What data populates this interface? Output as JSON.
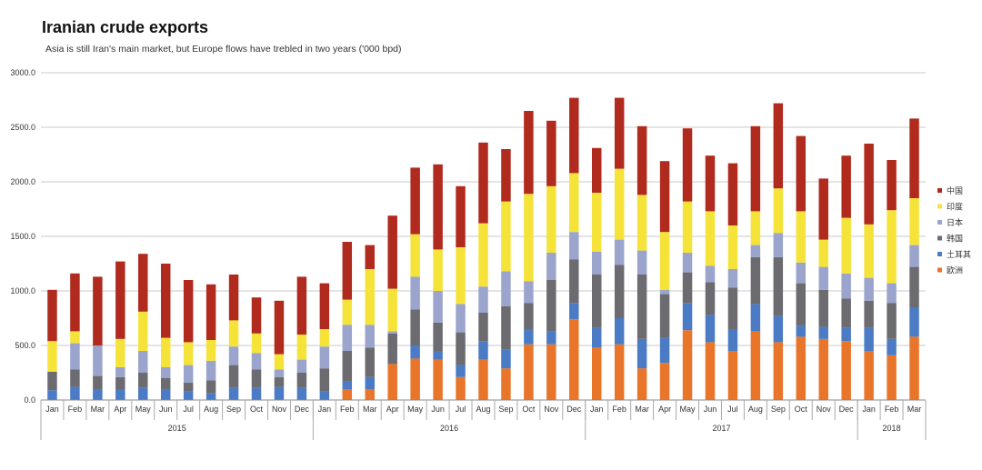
{
  "title": "Iranian crude exports",
  "subtitle": "Asia is still Iran's main market, but Europe flows have trebled in two years ('000 bpd)",
  "chart_data": {
    "type": "bar",
    "stacked": true,
    "title": "Iranian crude exports",
    "subtitle": "Asia is still Iran's main market, but Europe flows have trebled in two years ('000 bpd)",
    "xlabel": "",
    "ylabel": "",
    "ylim": [
      0,
      3000
    ],
    "yticks": [
      "0.0",
      "500.0",
      "1000.0",
      "1500.0",
      "2000.0",
      "2500.0",
      "3000.0"
    ],
    "grid": true,
    "legend_position": "right",
    "categories": [
      "Jan",
      "Feb",
      "Mar",
      "Apr",
      "May",
      "Jun",
      "Jul",
      "Aug",
      "Sep",
      "Oct",
      "Nov",
      "Dec",
      "Jan",
      "Feb",
      "Mar",
      "Apr",
      "May",
      "Jun",
      "Jul",
      "Aug",
      "Sep",
      "Oct",
      "Nov",
      "Dec",
      "Jan",
      "Feb",
      "Mar",
      "Apr",
      "May",
      "Jun",
      "Jul",
      "Aug",
      "Sep",
      "Oct",
      "Nov",
      "Dec",
      "Jan",
      "Feb",
      "Mar"
    ],
    "years": [
      {
        "label": "2015",
        "start": 0,
        "count": 12
      },
      {
        "label": "2016",
        "start": 12,
        "count": 12
      },
      {
        "label": "2017",
        "start": 24,
        "count": 12
      },
      {
        "label": "2018",
        "start": 36,
        "count": 3
      }
    ],
    "series": [
      {
        "name": "欧洲",
        "color": "#e8752a",
        "values": [
          0,
          0,
          0,
          0,
          0,
          0,
          0,
          0,
          0,
          0,
          0,
          0,
          0,
          100,
          100,
          330,
          380,
          370,
          210,
          370,
          290,
          510,
          510,
          740,
          480,
          510,
          290,
          340,
          640,
          530,
          450,
          630,
          530,
          580,
          560,
          540,
          450,
          410,
          580
        ]
      },
      {
        "name": "土耳其",
        "color": "#4a7bc4",
        "values": [
          90,
          120,
          100,
          100,
          110,
          100,
          80,
          60,
          110,
          110,
          120,
          110,
          80,
          70,
          110,
          0,
          120,
          80,
          110,
          170,
          170,
          140,
          120,
          150,
          180,
          240,
          270,
          230,
          250,
          250,
          200,
          250,
          240,
          100,
          110,
          120,
          210,
          150,
          270
        ]
      },
      {
        "name": "韩国",
        "color": "#6b6b70",
        "values": [
          170,
          160,
          120,
          110,
          140,
          100,
          80,
          120,
          210,
          170,
          90,
          140,
          210,
          280,
          270,
          280,
          330,
          260,
          300,
          260,
          400,
          240,
          470,
          400,
          490,
          490,
          590,
          400,
          280,
          300,
          380,
          430,
          540,
          390,
          340,
          270,
          250,
          330,
          370
        ]
      },
      {
        "name": "日本",
        "color": "#9aa4cc",
        "values": [
          0,
          240,
          280,
          90,
          200,
          100,
          160,
          180,
          170,
          150,
          70,
          120,
          200,
          240,
          210,
          20,
          300,
          290,
          260,
          240,
          320,
          200,
          250,
          250,
          210,
          230,
          220,
          40,
          180,
          150,
          170,
          110,
          220,
          190,
          210,
          230,
          210,
          180,
          200
        ]
      },
      {
        "name": "印度",
        "color": "#f5e33a",
        "values": [
          280,
          110,
          0,
          260,
          360,
          270,
          210,
          190,
          240,
          180,
          140,
          230,
          160,
          230,
          510,
          390,
          390,
          380,
          520,
          580,
          640,
          800,
          610,
          540,
          540,
          650,
          510,
          530,
          470,
          500,
          400,
          310,
          410,
          470,
          250,
          510,
          490,
          670,
          430
        ]
      },
      {
        "name": "中国",
        "color": "#b02a1e",
        "values": [
          470,
          530,
          630,
          710,
          530,
          680,
          570,
          510,
          420,
          330,
          490,
          530,
          420,
          530,
          220,
          670,
          610,
          780,
          560,
          740,
          480,
          760,
          600,
          690,
          410,
          650,
          630,
          650,
          670,
          510,
          570,
          780,
          780,
          690,
          560,
          570,
          740,
          460,
          730
        ]
      }
    ]
  }
}
